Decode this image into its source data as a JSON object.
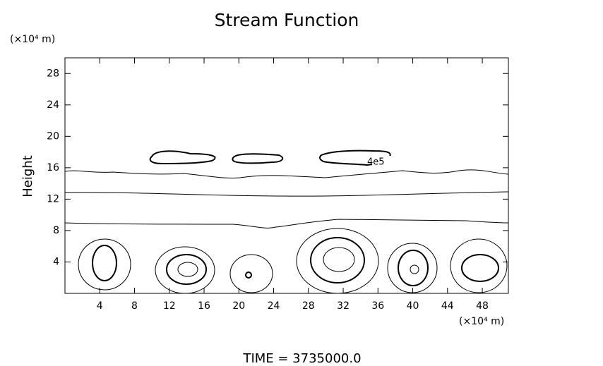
{
  "chart_data": {
    "type": "contour",
    "title": "Stream Function",
    "y_unit_label": "(×10⁴ m)",
    "x_unit_label": "(×10⁴ m)",
    "ylabel": "Height",
    "xlim": [
      0,
      51
    ],
    "ylim": [
      0,
      30
    ],
    "xticks": [
      4,
      8,
      12,
      16,
      20,
      24,
      28,
      32,
      36,
      40,
      44,
      48
    ],
    "yticks": [
      4,
      8,
      12,
      16,
      20,
      24,
      28
    ],
    "contour_label": "4e5",
    "footer": "TIME = 3735000.0"
  }
}
